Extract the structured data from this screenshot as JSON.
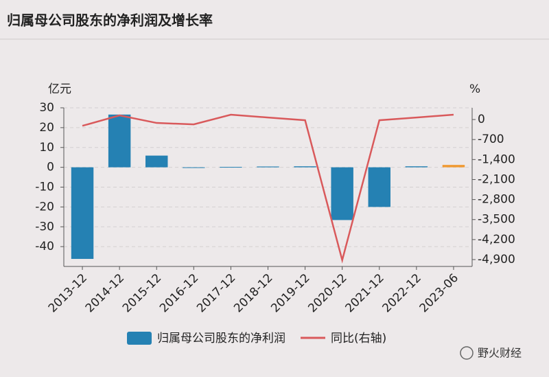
{
  "chart_data": {
    "type": "bar_line",
    "title": "归属母公司股东的净利润及增长率",
    "y_unit": "亿元",
    "y2_unit": "%",
    "watermark": "野火财经",
    "categories": [
      "2013-12",
      "2014-12",
      "2015-12",
      "2016-12",
      "2017-12",
      "2018-12",
      "2019-12",
      "2020-12",
      "2021-12",
      "2022-12",
      "2023-06"
    ],
    "series": [
      {
        "name": "归属母公司股东的净利润",
        "type": "bar",
        "color": "#2581b3",
        "point_colors": [
          "#2581b3",
          "#2581b3",
          "#2581b3",
          "#2581b3",
          "#2581b3",
          "#2581b3",
          "#2581b3",
          "#2581b3",
          "#2581b3",
          "#2581b3",
          "#f09a32"
        ],
        "values": [
          -46.2,
          26.6,
          5.9,
          -0.3,
          0.2,
          0.4,
          0.5,
          -26.6,
          -20,
          0.5,
          1.2
        ]
      },
      {
        "name": "同比(右轴)",
        "type": "line",
        "axis": "y2",
        "color": "#d9595b",
        "values": [
          -220,
          145,
          -120,
          -170,
          170,
          70,
          -25,
          -4920,
          -25,
          70,
          170
        ]
      }
    ],
    "ylim": [
      -50,
      30
    ],
    "yticks": [
      30,
      20,
      10,
      0,
      -10,
      -20,
      -30,
      -40
    ],
    "y2lim": [
      -5140,
      410
    ],
    "y2ticks": [
      0,
      {
        "value": -700,
        "label": "-700"
      },
      {
        "value": -1400,
        "label": "-1,400"
      },
      {
        "value": -2100,
        "label": "-2,100"
      },
      {
        "value": -2800,
        "label": "-2,800"
      },
      {
        "value": -3500,
        "label": "-3,500"
      },
      {
        "value": -4200,
        "label": "-4,200"
      },
      {
        "value": -4900,
        "label": "-4,900"
      }
    ],
    "grid": true
  }
}
